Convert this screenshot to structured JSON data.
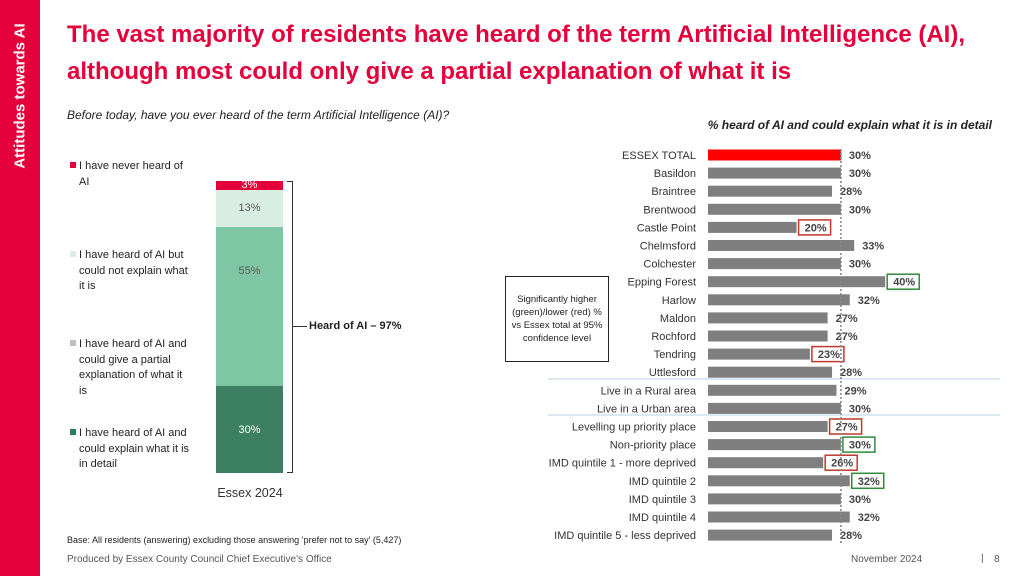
{
  "sidebar": {
    "label": "Attitudes towards AI"
  },
  "title": "The vast majority of residents have heard of the term Artificial Intelligence (AI), although most could only give a partial explanation of what it is",
  "question": "Before today, have you ever heard of the term Artificial Intelligence (AI)?",
  "right_heading": "% heard of AI and could explain what it is in detail",
  "legend": [
    {
      "label": "I have never heard of AI",
      "color": "#e4003b"
    },
    {
      "label": "I have heard of AI but could not explain what it is",
      "color": "#d9eee3"
    },
    {
      "label": "I have heard of AI and could give a partial explanation of what it is",
      "color": "#bfbfbf"
    },
    {
      "label": "I have heard of AI and could explain what it is in detail",
      "color": "#2e7d5b"
    }
  ],
  "heard_label": "Heard of AI – 97%",
  "significance_note": "Significantly higher (green)/lower (red) % vs Essex total at 95% confidence level",
  "base_note": "Base: All residents (answering) excluding those answering ‘prefer not to say’ (5,427)",
  "footer": {
    "producer": "Produced by Essex County Council Chief Executive’s Office",
    "date": "November 2024",
    "separator": "|",
    "page": "8"
  },
  "chart_data": [
    {
      "type": "bar",
      "stacked": true,
      "orientation": "vertical",
      "categories": [
        "Essex 2024"
      ],
      "series": [
        {
          "name": "I have heard of AI and could explain what it is in detail",
          "values": [
            30
          ],
          "color": "#3d7f62",
          "label_color": "#ffffff"
        },
        {
          "name": "I have heard of AI and could give a partial explanation of what it is",
          "values": [
            55
          ],
          "color": "#7fc6a4",
          "label_color": "#5a5a5a"
        },
        {
          "name": "I have heard of AI but could not explain what it is",
          "values": [
            13
          ],
          "color": "#d9eee3",
          "label_color": "#5a5a5a"
        },
        {
          "name": "I have never heard of AI",
          "values": [
            3
          ],
          "color": "#e4003b",
          "label_color": "#ffffff"
        }
      ],
      "ylim": [
        0,
        100
      ]
    },
    {
      "type": "bar",
      "orientation": "horizontal",
      "title": "% heard of AI and could explain what it is in detail",
      "categories": [
        "ESSEX TOTAL",
        "Basildon",
        "Braintree",
        "Brentwood",
        "Castle Point",
        "Chelmsford",
        "Colchester",
        "Epping Forest",
        "Harlow",
        "Maldon",
        "Rochford",
        "Tendring",
        "Uttlesford",
        "Live in a Rural area",
        "Live in a Urban area",
        "Levelling up priority place",
        "Non-priority place",
        "IMD quintile 1 - more deprived",
        "IMD quintile 2",
        "IMD quintile 3",
        "IMD quintile 4",
        "IMD quintile 5 - less deprived"
      ],
      "values": [
        30,
        30,
        28,
        30,
        20,
        33,
        30,
        40,
        32,
        27,
        27,
        23,
        28,
        29,
        30,
        27,
        30,
        26,
        32,
        30,
        32,
        28
      ],
      "labels": [
        "30%",
        "30%",
        "28%",
        "30%",
        "20%",
        "33%",
        "30%",
        "40%",
        "32%",
        "27%",
        "27%",
        "23%",
        "28%",
        "29%",
        "30%",
        "27%",
        "30%",
        "26%",
        "32%",
        "30%",
        "32%",
        "28%"
      ],
      "significance": [
        "total",
        "",
        "",
        "",
        "lower",
        "",
        "",
        "higher",
        "",
        "",
        "",
        "lower",
        "",
        "",
        "",
        "lower",
        "higher",
        "lower",
        "higher",
        "",
        "",
        ""
      ],
      "colors": {
        "total": "#ff0000",
        "bar": "#7f7f7f",
        "higher": "#2e8b3a",
        "lower": "#c0392b"
      },
      "reference_value": 30,
      "xlim": [
        0,
        45
      ]
    }
  ]
}
